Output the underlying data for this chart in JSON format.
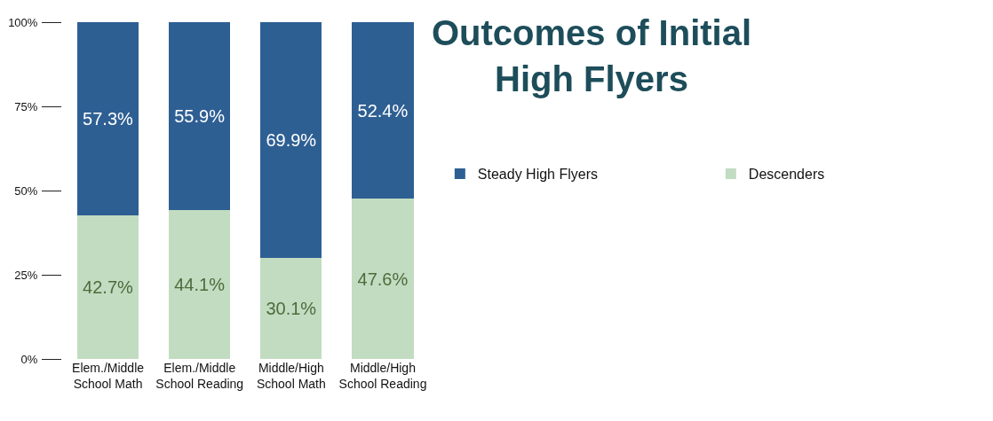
{
  "chart_data": {
    "type": "bar",
    "stacked": true,
    "title": "Outcomes of Initial High Flyers",
    "categories": [
      "Elem./Middle School Math",
      "Elem./Middle School Reading",
      "Middle/High School Math",
      "Middle/High School Reading"
    ],
    "series": [
      {
        "name": "Descenders",
        "color": "#c2dcc1",
        "values": [
          42.7,
          44.1,
          30.1,
          47.6
        ],
        "value_labels": [
          "42.7%",
          "44.1%",
          "30.1%",
          "47.6%"
        ]
      },
      {
        "name": "Steady High Flyers",
        "color": "#2e5f93",
        "values": [
          57.3,
          55.9,
          69.9,
          52.4
        ],
        "value_labels": [
          "57.3%",
          "55.9%",
          "69.9%",
          "52.4%"
        ]
      }
    ],
    "ylim": [
      0,
      100
    ],
    "yticks": [
      {
        "value": 0,
        "label": "0%"
      },
      {
        "value": 25,
        "label": "25%"
      },
      {
        "value": 50,
        "label": "50%"
      },
      {
        "value": 75,
        "label": "75%"
      },
      {
        "value": 100,
        "label": "100%"
      }
    ],
    "legend": "right"
  }
}
